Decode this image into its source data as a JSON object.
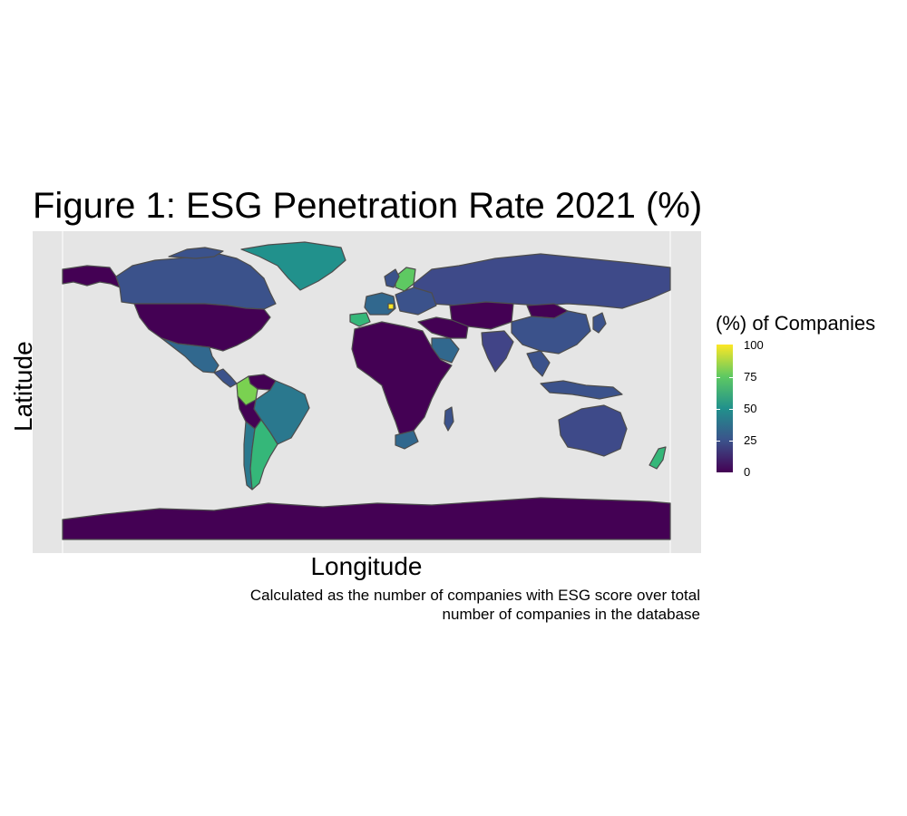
{
  "title": "Figure 1: ESG Penetration Rate 2021 (%)",
  "axes": {
    "xlabel": "Longitude",
    "ylabel": "Latitude"
  },
  "caption": {
    "line1": "Calculated as the number of companies with ESG score over total",
    "line2": "number of companies in the database"
  },
  "legend": {
    "title": "(%) of Companies",
    "ticks": [
      "100",
      "75",
      "50",
      "25",
      "0"
    ],
    "scale": "viridis",
    "range": [
      0,
      100
    ]
  },
  "colors": {
    "panel_bg": "#e5e5e5",
    "border": "#4d4d4d",
    "viridis_0": "#440154",
    "viridis_25": "#3b528b",
    "viridis_50": "#21918c",
    "viridis_75": "#5ec962",
    "viridis_100": "#fde725"
  },
  "map_values": {
    "Greenland": 55,
    "Canada": 25,
    "United States": 2,
    "Mexico": 40,
    "Colombia": 85,
    "Brazil": 42,
    "Peru": 2,
    "Chile": 45,
    "Argentina": 70,
    "Venezuela": 2,
    "Russia": 22,
    "China": 25,
    "Mongolia": 2,
    "India": 18,
    "Africa (most countries)": 2,
    "South Africa": 38,
    "Madagascar": 25,
    "Saudi Arabia": 40,
    "Australia": 22,
    "New Zealand": 65,
    "Spain": 58,
    "Sweden": 75,
    "Finland": 60,
    "Hungary": 100,
    "Antarctica": 0
  }
}
